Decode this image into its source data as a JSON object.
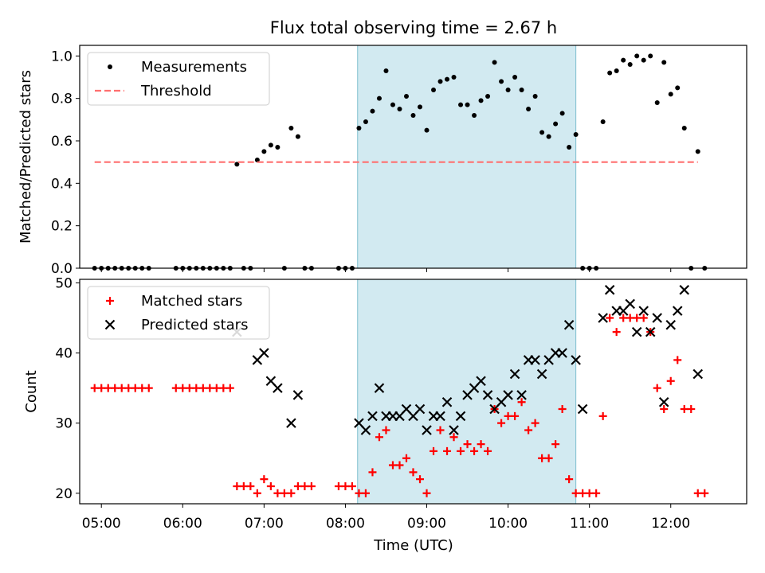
{
  "chart_data": [
    {
      "type": "scatter",
      "title": "Flux total observing time = 2.67 h",
      "xlabel": "",
      "ylabel": "Matched/Predicted stars",
      "xlim": [
        "04:44",
        "12:56"
      ],
      "ylim": [
        0.0,
        1.05
      ],
      "yticks": [
        0.0,
        0.2,
        0.4,
        0.6,
        0.8,
        1.0
      ],
      "ytick_labels": [
        "0.0",
        "0.2",
        "0.4",
        "0.6",
        "0.8",
        "1.0"
      ],
      "legend_position": "top-left",
      "legend": [
        "Measurements",
        "Threshold"
      ],
      "highlight_span": {
        "start": "08:09",
        "end": "10:50",
        "color": "#add8e6"
      },
      "series": [
        {
          "name": "Measurements",
          "marker": "dot",
          "color": "#000000",
          "points": [
            [
              "04:55",
              0.0
            ],
            [
              "05:00",
              0.0
            ],
            [
              "05:05",
              0.0
            ],
            [
              "05:10",
              0.0
            ],
            [
              "05:15",
              0.0
            ],
            [
              "05:20",
              0.0
            ],
            [
              "05:25",
              0.0
            ],
            [
              "05:30",
              0.0
            ],
            [
              "05:35",
              0.0
            ],
            [
              "05:55",
              0.0
            ],
            [
              "06:00",
              0.0
            ],
            [
              "06:05",
              0.0
            ],
            [
              "06:10",
              0.0
            ],
            [
              "06:15",
              0.0
            ],
            [
              "06:20",
              0.0
            ],
            [
              "06:25",
              0.0
            ],
            [
              "06:30",
              0.0
            ],
            [
              "06:35",
              0.0
            ],
            [
              "06:40",
              0.49
            ],
            [
              "06:45",
              0.0
            ],
            [
              "06:50",
              0.0
            ],
            [
              "06:55",
              0.51
            ],
            [
              "07:00",
              0.55
            ],
            [
              "07:05",
              0.58
            ],
            [
              "07:10",
              0.57
            ],
            [
              "07:15",
              0.0
            ],
            [
              "07:20",
              0.66
            ],
            [
              "07:25",
              0.62
            ],
            [
              "07:30",
              0.0
            ],
            [
              "07:35",
              0.0
            ],
            [
              "07:55",
              0.0
            ],
            [
              "08:00",
              0.0
            ],
            [
              "08:05",
              0.0
            ],
            [
              "08:10",
              0.66
            ],
            [
              "08:15",
              0.69
            ],
            [
              "08:20",
              0.74
            ],
            [
              "08:25",
              0.8
            ],
            [
              "08:30",
              0.93
            ],
            [
              "08:35",
              0.77
            ],
            [
              "08:40",
              0.75
            ],
            [
              "08:45",
              0.81
            ],
            [
              "08:50",
              0.72
            ],
            [
              "08:55",
              0.76
            ],
            [
              "09:00",
              0.65
            ],
            [
              "09:05",
              0.84
            ],
            [
              "09:10",
              0.88
            ],
            [
              "09:15",
              0.89
            ],
            [
              "09:20",
              0.9
            ],
            [
              "09:25",
              0.77
            ],
            [
              "09:30",
              0.77
            ],
            [
              "09:35",
              0.72
            ],
            [
              "09:40",
              0.79
            ],
            [
              "09:45",
              0.81
            ],
            [
              "09:50",
              0.97
            ],
            [
              "09:55",
              0.88
            ],
            [
              "10:00",
              0.84
            ],
            [
              "10:05",
              0.9
            ],
            [
              "10:10",
              0.84
            ],
            [
              "10:15",
              0.75
            ],
            [
              "10:20",
              0.81
            ],
            [
              "10:25",
              0.64
            ],
            [
              "10:30",
              0.62
            ],
            [
              "10:35",
              0.68
            ],
            [
              "10:40",
              0.73
            ],
            [
              "10:45",
              0.57
            ],
            [
              "10:50",
              0.63
            ],
            [
              "10:55",
              0.0
            ],
            [
              "11:00",
              0.0
            ],
            [
              "11:05",
              0.0
            ],
            [
              "11:10",
              0.69
            ],
            [
              "11:15",
              0.92
            ],
            [
              "11:20",
              0.93
            ],
            [
              "11:25",
              0.98
            ],
            [
              "11:30",
              0.96
            ],
            [
              "11:35",
              1.0
            ],
            [
              "11:40",
              0.98
            ],
            [
              "11:45",
              1.0
            ],
            [
              "11:50",
              0.78
            ],
            [
              "11:55",
              0.97
            ],
            [
              "12:00",
              0.82
            ],
            [
              "12:05",
              0.85
            ],
            [
              "12:10",
              0.66
            ],
            [
              "12:15",
              0.0
            ],
            [
              "12:20",
              0.55
            ],
            [
              "12:25",
              0.0
            ]
          ]
        },
        {
          "name": "Threshold",
          "style": "dashed-line",
          "color": "#ff7070",
          "points": [
            [
              "04:55",
              0.5
            ],
            [
              "12:20",
              0.5
            ]
          ]
        }
      ]
    },
    {
      "type": "scatter",
      "title": "",
      "xlabel": "Time (UTC)",
      "ylabel": "Count",
      "xlim": [
        "04:44",
        "12:56"
      ],
      "ylim": [
        18.5,
        50.5
      ],
      "yticks": [
        20,
        30,
        40,
        50
      ],
      "ytick_labels": [
        "20",
        "30",
        "40",
        "50"
      ],
      "xticks": [
        "05:00",
        "06:00",
        "07:00",
        "08:00",
        "09:00",
        "10:00",
        "11:00",
        "12:00"
      ],
      "legend_position": "top-left",
      "legend": [
        "Matched stars",
        "Predicted stars"
      ],
      "highlight_span": {
        "start": "08:09",
        "end": "10:50",
        "color": "#add8e6"
      },
      "series": [
        {
          "name": "Matched stars",
          "marker": "plus",
          "color": "#ff0000",
          "points": [
            [
              "04:55",
              35
            ],
            [
              "05:00",
              35
            ],
            [
              "05:05",
              35
            ],
            [
              "05:10",
              35
            ],
            [
              "05:15",
              35
            ],
            [
              "05:20",
              35
            ],
            [
              "05:25",
              35
            ],
            [
              "05:30",
              35
            ],
            [
              "05:35",
              35
            ],
            [
              "05:55",
              35
            ],
            [
              "06:00",
              35
            ],
            [
              "06:05",
              35
            ],
            [
              "06:10",
              35
            ],
            [
              "06:15",
              35
            ],
            [
              "06:20",
              35
            ],
            [
              "06:25",
              35
            ],
            [
              "06:30",
              35
            ],
            [
              "06:35",
              35
            ],
            [
              "06:40",
              21
            ],
            [
              "06:45",
              21
            ],
            [
              "06:50",
              21
            ],
            [
              "06:55",
              20
            ],
            [
              "07:00",
              22
            ],
            [
              "07:05",
              21
            ],
            [
              "07:10",
              20
            ],
            [
              "07:15",
              20
            ],
            [
              "07:20",
              20
            ],
            [
              "07:25",
              21
            ],
            [
              "07:30",
              21
            ],
            [
              "07:35",
              21
            ],
            [
              "07:55",
              21
            ],
            [
              "08:00",
              21
            ],
            [
              "08:05",
              21
            ],
            [
              "08:10",
              20
            ],
            [
              "08:15",
              20
            ],
            [
              "08:20",
              23
            ],
            [
              "08:25",
              28
            ],
            [
              "08:30",
              29
            ],
            [
              "08:35",
              24
            ],
            [
              "08:40",
              24
            ],
            [
              "08:45",
              25
            ],
            [
              "08:50",
              23
            ],
            [
              "08:55",
              22
            ],
            [
              "09:00",
              20
            ],
            [
              "09:05",
              26
            ],
            [
              "09:10",
              29
            ],
            [
              "09:15",
              26
            ],
            [
              "09:20",
              28
            ],
            [
              "09:25",
              26
            ],
            [
              "09:30",
              27
            ],
            [
              "09:35",
              26
            ],
            [
              "09:40",
              27
            ],
            [
              "09:45",
              26
            ],
            [
              "09:50",
              32
            ],
            [
              "09:55",
              30
            ],
            [
              "10:00",
              31
            ],
            [
              "10:05",
              31
            ],
            [
              "10:10",
              33
            ],
            [
              "10:15",
              29
            ],
            [
              "10:20",
              30
            ],
            [
              "10:25",
              25
            ],
            [
              "10:30",
              25
            ],
            [
              "10:35",
              27
            ],
            [
              "10:40",
              32
            ],
            [
              "10:45",
              22
            ],
            [
              "10:50",
              20
            ],
            [
              "10:55",
              20
            ],
            [
              "11:00",
              20
            ],
            [
              "11:05",
              20
            ],
            [
              "11:10",
              31
            ],
            [
              "11:15",
              45
            ],
            [
              "11:20",
              43
            ],
            [
              "11:25",
              45
            ],
            [
              "11:30",
              45
            ],
            [
              "11:35",
              45
            ],
            [
              "11:40",
              45
            ],
            [
              "11:45",
              43
            ],
            [
              "11:50",
              35
            ],
            [
              "11:55",
              32
            ],
            [
              "12:00",
              36
            ],
            [
              "12:05",
              39
            ],
            [
              "12:10",
              32
            ],
            [
              "12:15",
              32
            ],
            [
              "12:20",
              20
            ],
            [
              "12:25",
              20
            ]
          ]
        },
        {
          "name": "Predicted stars",
          "marker": "x",
          "color": "#000000",
          "points": [
            [
              "06:40",
              43
            ],
            [
              "06:55",
              39
            ],
            [
              "07:00",
              40
            ],
            [
              "07:05",
              36
            ],
            [
              "07:10",
              35
            ],
            [
              "07:20",
              30
            ],
            [
              "07:25",
              34
            ],
            [
              "08:10",
              30
            ],
            [
              "08:15",
              29
            ],
            [
              "08:20",
              31
            ],
            [
              "08:25",
              35
            ],
            [
              "08:30",
              31
            ],
            [
              "08:35",
              31
            ],
            [
              "08:40",
              31
            ],
            [
              "08:45",
              32
            ],
            [
              "08:50",
              31
            ],
            [
              "08:55",
              32
            ],
            [
              "09:00",
              29
            ],
            [
              "09:05",
              31
            ],
            [
              "09:10",
              31
            ],
            [
              "09:15",
              33
            ],
            [
              "09:20",
              29
            ],
            [
              "09:25",
              31
            ],
            [
              "09:30",
              34
            ],
            [
              "09:35",
              35
            ],
            [
              "09:40",
              36
            ],
            [
              "09:45",
              34
            ],
            [
              "09:50",
              32
            ],
            [
              "09:55",
              33
            ],
            [
              "10:00",
              34
            ],
            [
              "10:05",
              37
            ],
            [
              "10:10",
              34
            ],
            [
              "10:15",
              39
            ],
            [
              "10:20",
              39
            ],
            [
              "10:25",
              37
            ],
            [
              "10:30",
              39
            ],
            [
              "10:35",
              40
            ],
            [
              "10:40",
              40
            ],
            [
              "10:45",
              44
            ],
            [
              "10:50",
              39
            ],
            [
              "10:55",
              32
            ],
            [
              "11:10",
              45
            ],
            [
              "11:15",
              49
            ],
            [
              "11:20",
              46
            ],
            [
              "11:25",
              46
            ],
            [
              "11:30",
              47
            ],
            [
              "11:35",
              43
            ],
            [
              "11:40",
              46
            ],
            [
              "11:45",
              43
            ],
            [
              "11:50",
              45
            ],
            [
              "11:55",
              33
            ],
            [
              "12:00",
              44
            ],
            [
              "12:05",
              46
            ],
            [
              "12:10",
              49
            ],
            [
              "12:20",
              37
            ]
          ]
        }
      ]
    }
  ]
}
